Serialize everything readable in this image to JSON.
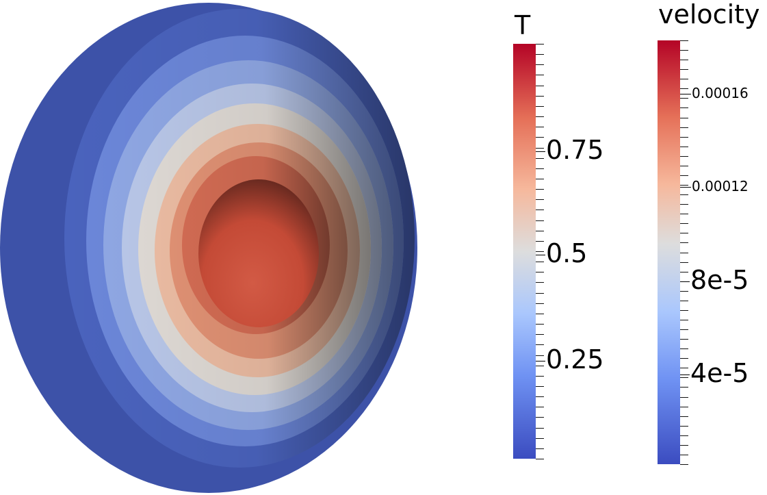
{
  "legends": [
    {
      "id": "T",
      "title": "T",
      "labels": [
        {
          "text": "0.75",
          "value": 0.75
        },
        {
          "text": "0.5",
          "value": 0.5
        },
        {
          "text": "0.25",
          "value": 0.25
        }
      ],
      "range": [
        0,
        1
      ]
    },
    {
      "id": "velocity",
      "title": "velocity",
      "labels": [
        {
          "text": "0.00016",
          "value": 0.00016
        },
        {
          "text": "0.00012",
          "value": 0.00012
        },
        {
          "text": "8e-5",
          "value": 8e-05
        },
        {
          "text": "4e-5",
          "value": 4e-05
        }
      ],
      "range": [
        0,
        0.000184
      ]
    }
  ],
  "colormap": {
    "low": "#3b4cc0",
    "mid": "#dddddd",
    "high": "#b40426"
  }
}
